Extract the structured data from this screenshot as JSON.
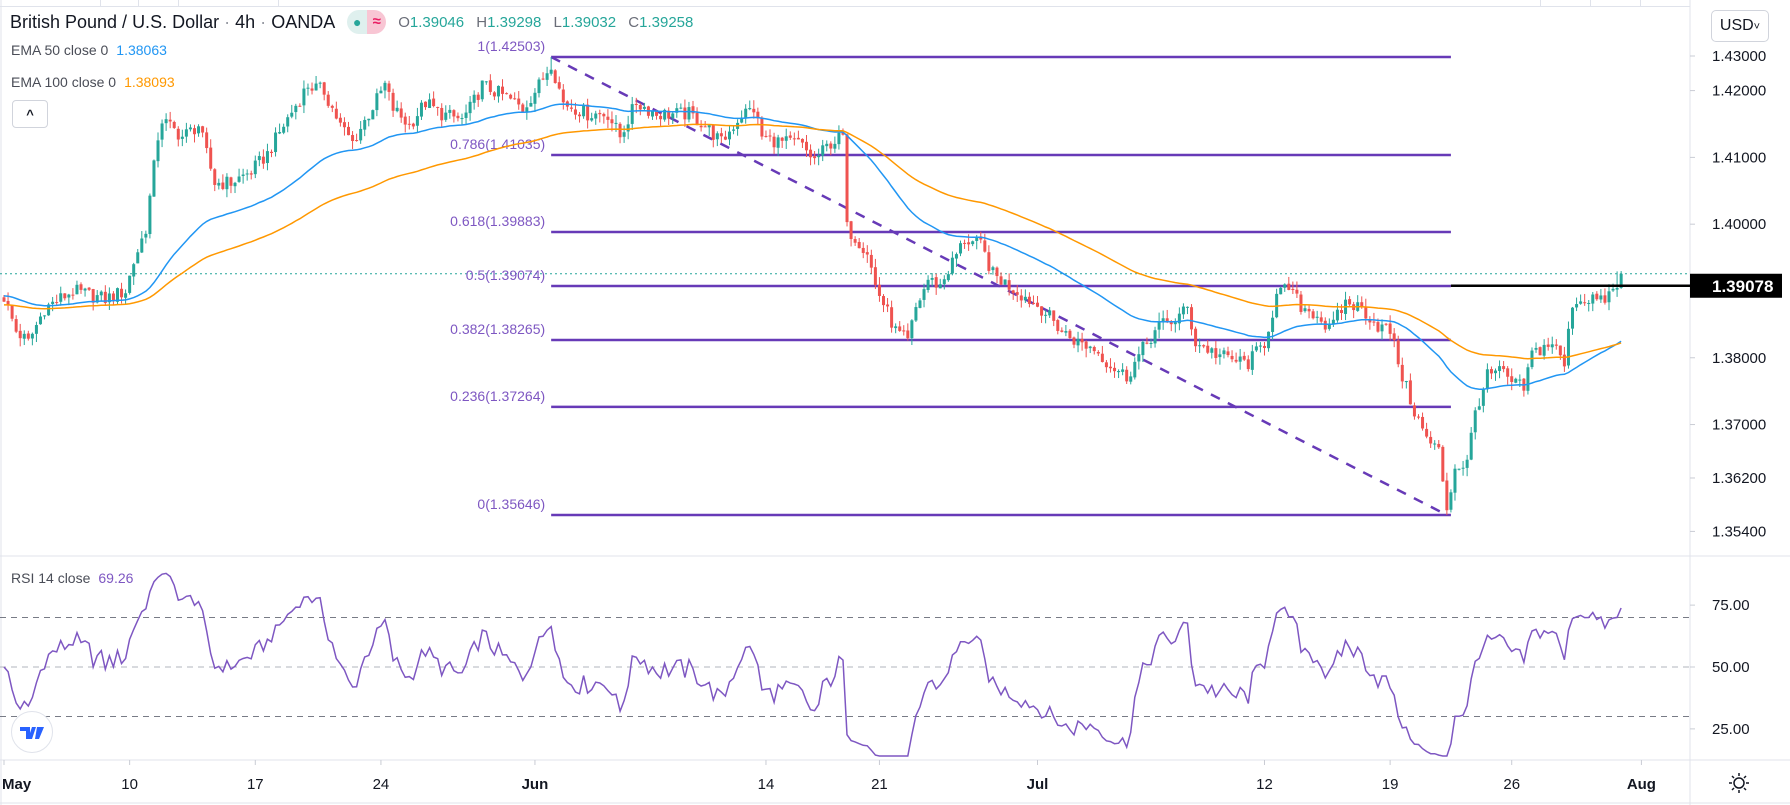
{
  "header": {
    "symbol": "British Pound / U.S. Dollar",
    "interval": "4h",
    "source": "OANDA",
    "sep": "·",
    "badge_dot": "●",
    "badge_wave": "≈",
    "ohlc": {
      "o_label": "O",
      "o": "1.39046",
      "h_label": "H",
      "h": "1.39298",
      "l_label": "L",
      "l": "1.39032",
      "c_label": "C",
      "c": "1.39258"
    }
  },
  "indicators": {
    "ema50": {
      "label": "EMA 50 close 0",
      "value": "1.38063",
      "color": "#2196f3"
    },
    "ema100": {
      "label": "EMA 100 close 0",
      "value": "1.38093",
      "color": "#ff9800"
    },
    "rsi": {
      "label": "RSI 14 close",
      "value": "69.26",
      "color": "#7e57c2"
    }
  },
  "collapse_icon": "^",
  "currency_button": "USD",
  "currency_chevron": "˅",
  "colors": {
    "up": "#26a69a",
    "down": "#ef5350",
    "fib": "#673ab7",
    "fib_text": "#7e57c2"
  },
  "chart_data": {
    "type": "candlestick",
    "title": "British Pound / U.S. Dollar · 4h · OANDA",
    "price_axis": {
      "range": [
        1.3475,
        1.433
      ],
      "ticks": [
        "1.43000",
        "1.42000",
        "1.41000",
        "1.40000",
        "1.38000",
        "1.37000",
        "1.36200",
        "1.35400"
      ],
      "tick_values": [
        1.43,
        1.42,
        1.41,
        1.4,
        1.38,
        1.37,
        1.362,
        1.354
      ],
      "current_price_label": "1.39078",
      "current_price_value": 1.39078,
      "last_close": 1.39258
    },
    "time_axis": {
      "labels": [
        "May",
        "10",
        "17",
        "24",
        "Jun",
        "14",
        "21",
        "Jul",
        "12",
        "19",
        "26",
        "Aug"
      ],
      "label_bars": [
        0,
        31,
        62,
        93,
        131,
        188,
        216,
        255,
        311,
        342,
        372,
        404
      ],
      "bar_count": 400
    },
    "price_path_bar_close": [
      [
        0,
        1.3891
      ],
      [
        3,
        1.384
      ],
      [
        6,
        1.3823
      ],
      [
        10,
        1.3874
      ],
      [
        17,
        1.39
      ],
      [
        25,
        1.3888
      ],
      [
        30,
        1.39
      ],
      [
        32,
        1.3943
      ],
      [
        35,
        1.3994
      ],
      [
        38,
        1.4131
      ],
      [
        39,
        1.4156
      ],
      [
        44,
        1.4131
      ],
      [
        48,
        1.4148
      ],
      [
        52,
        1.4062
      ],
      [
        56,
        1.4062
      ],
      [
        61,
        1.4079
      ],
      [
        65,
        1.4105
      ],
      [
        69,
        1.4148
      ],
      [
        75,
        1.4208
      ],
      [
        79,
        1.4199
      ],
      [
        83,
        1.4148
      ],
      [
        86,
        1.4122
      ],
      [
        90,
        1.4165
      ],
      [
        94,
        1.4208
      ],
      [
        96,
        1.4173
      ],
      [
        100,
        1.4148
      ],
      [
        104,
        1.4182
      ],
      [
        108,
        1.4165
      ],
      [
        113,
        1.4156
      ],
      [
        115,
        1.4173
      ],
      [
        118,
        1.4208
      ],
      [
        124,
        1.419
      ],
      [
        128,
        1.4173
      ],
      [
        132,
        1.4208
      ],
      [
        135,
        1.4242
      ],
      [
        138,
        1.4182
      ],
      [
        144,
        1.4165
      ],
      [
        149,
        1.4165
      ],
      [
        152,
        1.4131
      ],
      [
        156,
        1.4182
      ],
      [
        161,
        1.4165
      ],
      [
        165,
        1.4165
      ],
      [
        169,
        1.4165
      ],
      [
        173,
        1.4148
      ],
      [
        177,
        1.4122
      ],
      [
        182,
        1.4165
      ],
      [
        185,
        1.4173
      ],
      [
        187,
        1.4131
      ],
      [
        192,
        1.4122
      ],
      [
        196,
        1.4122
      ],
      [
        200,
        1.4096
      ],
      [
        204,
        1.4122
      ],
      [
        207,
        1.4131
      ],
      [
        208,
        1.3994
      ],
      [
        213,
        1.396
      ],
      [
        215,
        1.3908
      ],
      [
        220,
        1.384
      ],
      [
        223,
        1.3823
      ],
      [
        225,
        1.3874
      ],
      [
        228,
        1.3917
      ],
      [
        231,
        1.3908
      ],
      [
        234,
        1.3943
      ],
      [
        237,
        1.3977
      ],
      [
        241,
        1.3968
      ],
      [
        244,
        1.3925
      ],
      [
        248,
        1.3908
      ],
      [
        252,
        1.3891
      ],
      [
        256,
        1.3874
      ],
      [
        261,
        1.384
      ],
      [
        265,
        1.3823
      ],
      [
        269,
        1.3814
      ],
      [
        273,
        1.3789
      ],
      [
        277,
        1.3772
      ],
      [
        282,
        1.3823
      ],
      [
        285,
        1.3848
      ],
      [
        289,
        1.3857
      ],
      [
        292,
        1.3874
      ],
      [
        294,
        1.3823
      ],
      [
        299,
        1.3806
      ],
      [
        303,
        1.3797
      ],
      [
        307,
        1.3792
      ],
      [
        311,
        1.3823
      ],
      [
        314,
        1.3891
      ],
      [
        317,
        1.3905
      ],
      [
        320,
        1.3877
      ],
      [
        324,
        1.3865
      ],
      [
        327,
        1.384
      ],
      [
        331,
        1.3883
      ],
      [
        335,
        1.3874
      ],
      [
        339,
        1.3848
      ],
      [
        342,
        1.384
      ],
      [
        345,
        1.3772
      ],
      [
        348,
        1.372
      ],
      [
        351,
        1.3678
      ],
      [
        354,
        1.366
      ],
      [
        356,
        1.3575
      ],
      [
        358,
        1.3635
      ],
      [
        361,
        1.3643
      ],
      [
        363,
        1.372
      ],
      [
        366,
        1.3772
      ],
      [
        369,
        1.378
      ],
      [
        372,
        1.3763
      ],
      [
        375,
        1.3754
      ],
      [
        377,
        1.3806
      ],
      [
        382,
        1.3823
      ],
      [
        385,
        1.3789
      ],
      [
        387,
        1.3883
      ],
      [
        392,
        1.3891
      ],
      [
        394,
        1.3883
      ],
      [
        397,
        1.39
      ],
      [
        399,
        1.39258
      ]
    ],
    "last_candle_ohlc": [
      1.39046,
      1.39298,
      1.39032,
      1.39258
    ],
    "fibonacci": {
      "start_bar": 135,
      "end_bar": 357,
      "high": 1.42503,
      "low": 1.35646,
      "levels": [
        {
          "ratio": 1,
          "price": 1.42503,
          "label": "1(1.42503)"
        },
        {
          "ratio": 0.786,
          "price": 1.41035,
          "label": "0.786(1.41035)"
        },
        {
          "ratio": 0.618,
          "price": 1.39883,
          "label": "0.618(1.39883)"
        },
        {
          "ratio": 0.5,
          "price": 1.39074,
          "label": "0.5(1.39074)"
        },
        {
          "ratio": 0.382,
          "price": 1.38265,
          "label": "0.382(1.38265)"
        },
        {
          "ratio": 0.236,
          "price": 1.37264,
          "label": "0.236(1.37264)"
        },
        {
          "ratio": 0,
          "price": 1.35646,
          "label": "0(1.35646)"
        }
      ],
      "trendline": [
        [
          135,
          1.42503
        ],
        [
          356,
          1.35646
        ]
      ]
    },
    "rsi_axis": {
      "ticks": [
        "75.00",
        "50.00",
        "25.00"
      ],
      "tick_values": [
        75,
        50,
        25
      ],
      "bands": [
        70,
        50,
        30
      ],
      "range": [
        10,
        95
      ]
    },
    "ema_periods": [
      50,
      100
    ],
    "rsi_period": 14
  }
}
